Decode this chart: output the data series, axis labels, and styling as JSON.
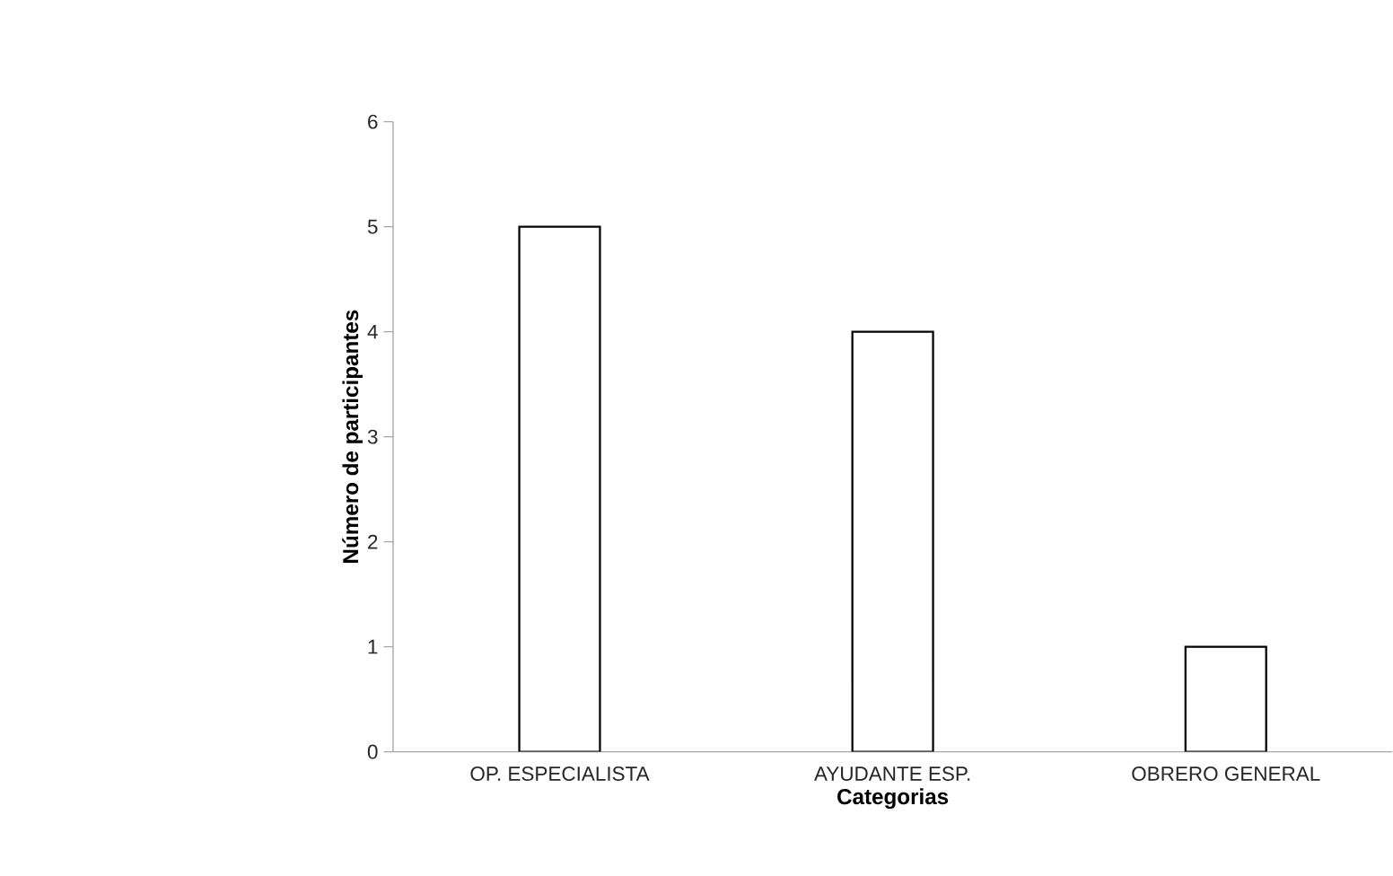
{
  "chart_data": {
    "type": "bar",
    "xlabel": "Categorias",
    "ylabel": "Número de participantes",
    "categories": [
      "OP. ESPECIALISTA",
      "AYUDANTE ESP.",
      "OBRERO GENERAL"
    ],
    "values": [
      5,
      4,
      1
    ],
    "color": "#ffffff",
    "ylim": [
      0,
      6
    ],
    "yticks": [
      0,
      1,
      2,
      3,
      4,
      5,
      6
    ],
    "grid": false
  }
}
